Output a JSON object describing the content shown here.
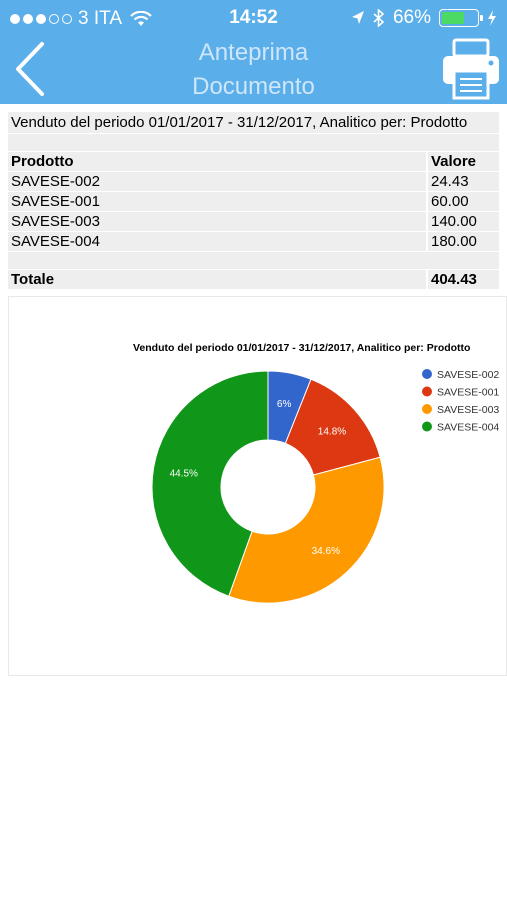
{
  "status_bar": {
    "carrier": "3 ITA",
    "time": "14:52",
    "battery": "66%",
    "battery_level": 0.66
  },
  "nav": {
    "title_line1": "Anteprima",
    "title_line2": "Documento",
    "back_icon": "chevron-left-icon",
    "print_icon": "printer-icon"
  },
  "report": {
    "heading": "Venduto del periodo 01/01/2017 - 31/12/2017, Analitico per: Prodotto",
    "columns": [
      "Prodotto",
      "Valore"
    ],
    "rows": [
      {
        "product": "SAVESE-002",
        "value": "24.43"
      },
      {
        "product": "SAVESE-001",
        "value": "60.00"
      },
      {
        "product": "SAVESE-003",
        "value": "140.00"
      },
      {
        "product": "SAVESE-004",
        "value": "180.00"
      }
    ],
    "total_label": "Totale",
    "total_value": "404.43"
  },
  "chart_data": {
    "type": "pie",
    "donut": true,
    "title": "Venduto del periodo 01/01/2017 - 31/12/2017, Analitico per: Prodotto",
    "categories": [
      "SAVESE-002",
      "SAVESE-001",
      "SAVESE-003",
      "SAVESE-004"
    ],
    "values": [
      24.43,
      60.0,
      140.0,
      180.0
    ],
    "labels": [
      "6%",
      "14.8%",
      "34.6%",
      "44.5%"
    ],
    "colors": [
      "#3366cc",
      "#dc3912",
      "#ff9900",
      "#109618"
    ],
    "legend": "right"
  }
}
